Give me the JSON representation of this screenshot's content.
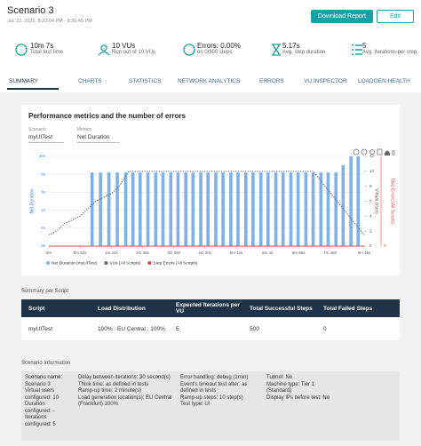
{
  "header": {
    "title": "Scenario 3",
    "subtitle": "Jul. 22, 2021, 8:22:04 PM - 8:30:45 PM",
    "buttons": [
      "Download Report",
      "Edit"
    ]
  },
  "stats": [
    {
      "value": "10m 7s",
      "label": "Total test time"
    },
    {
      "value": "10 VUs",
      "label": "Run out of 10 VUs"
    },
    {
      "value": "Errors: 0.00%",
      "label": "on 0/500 steps"
    },
    {
      "value": "5.17s",
      "label": "Avg. step duration"
    },
    {
      "value": "5",
      "label": "Avg. iterations per step"
    }
  ],
  "tabs": [
    "SUMMARY",
    "CHARTS",
    "STATISTICS",
    "NETWORK ANALYTICS",
    "ERRORS",
    "VU INSPECTOR",
    "LOADGEN HEALTH"
  ],
  "chart": {
    "type": "combo",
    "title": "Performance metrics and the number of errors",
    "selectors": [
      {
        "label": "Scenario",
        "value": "myUITest"
      },
      {
        "label": "Metrics",
        "value": "Net Duration"
      }
    ],
    "ylabel": "Net Duration",
    "y2label": "Virtual Users",
    "y3label": "Step Errors (All Scripts)",
    "xlim": [
      0,
      525
    ],
    "xticks": [
      {
        "value": 0,
        "label": "0m"
      },
      {
        "value": 52,
        "label": "0m 52s"
      },
      {
        "value": 104,
        "label": "1m 44s"
      },
      {
        "value": 156,
        "label": "2m 36s"
      },
      {
        "value": 208,
        "label": "3m 28s"
      },
      {
        "value": 260,
        "label": "4m 20s"
      },
      {
        "value": 312,
        "label": "5m 12s"
      },
      {
        "value": 364,
        "label": "6m 4s"
      },
      {
        "value": 416,
        "label": "6m 56s"
      },
      {
        "value": 468,
        "label": "7m 48s"
      },
      {
        "value": 525,
        "label": "8m 45s"
      }
    ],
    "ylim": [
      0,
      10
    ],
    "yticks": [
      {
        "value": 0,
        "label": "0s"
      },
      {
        "value": 2,
        "label": "2s"
      },
      {
        "value": 4,
        "label": "4s"
      },
      {
        "value": 6,
        "label": "6s"
      },
      {
        "value": 8,
        "label": "8s"
      },
      {
        "value": 10,
        "label": "10s"
      }
    ],
    "y2lim": [
      0,
      12
    ],
    "y2ticks": [
      0,
      2,
      4,
      6,
      8,
      10,
      12
    ],
    "y3lim": [
      0,
      1
    ],
    "y3ticks": [
      0
    ],
    "grid": true,
    "series": [
      {
        "name": "Net Duration (myUITest)",
        "type": "bar",
        "color": "#7eb0ea",
        "x": [
          72,
          86,
          100,
          114,
          128,
          140,
          152,
          165,
          178,
          190,
          203,
          215,
          228,
          240,
          253,
          265,
          278,
          290,
          303,
          315,
          328,
          340,
          353,
          365,
          378,
          390,
          403,
          415,
          428,
          440,
          453,
          465,
          478,
          490,
          503,
          515
        ],
        "values": [
          8.2,
          8.2,
          8.2,
          8.2,
          8.2,
          8.2,
          8.2,
          8.2,
          8.2,
          8.2,
          8.2,
          8.2,
          8.2,
          8.2,
          8.2,
          8.2,
          8.2,
          8.2,
          8.2,
          8.2,
          8.2,
          8.2,
          8.2,
          8.2,
          8.2,
          8.2,
          8.2,
          8.2,
          8.2,
          8.2,
          8.2,
          8.2,
          8.2,
          9,
          10,
          10
        ]
      },
      {
        "name": "VUs (All Scripts)",
        "type": "line",
        "axis": "y2",
        "color": "#666666",
        "x": [
          0,
          13,
          26,
          39,
          52,
          65,
          78,
          91,
          104,
          117,
          133,
          440,
          470,
          500,
          525
        ],
        "values": [
          1.5,
          2,
          3,
          3.5,
          4,
          5,
          6,
          6.5,
          7,
          8,
          10,
          10,
          7,
          4,
          1.5
        ]
      },
      {
        "name": "Step Errors (All Scripts)",
        "type": "line",
        "axis": "y3",
        "color": "#e04848",
        "x": [
          0,
          525
        ],
        "values": [
          0,
          0
        ]
      }
    ]
  },
  "summary": {
    "title": "Summary per Script",
    "columns": [
      "Script",
      "Load Distribution",
      "Expected Iterations per VU",
      "Total Successful Steps",
      "Total Failed Steps"
    ],
    "rows": [
      [
        "myUITest",
        "100% : EU Central : 100%",
        5,
        500,
        0
      ]
    ]
  },
  "info": {
    "title": "Scenario Information",
    "columns": [
      [
        "Scenario name: Scenario 3",
        "Virtual users configured: 10",
        "Duration configured: -",
        "Iterations configured: 5"
      ],
      [
        "Delay between iterations: 30 second(s)",
        "Think time: as defined in tests",
        "Ramp-up time: 2 minute(s)",
        "Load generation location(s): EU Central (Frankfurt) 100%"
      ],
      [
        "Error handling: debug (1min)",
        "Event's timeout test after: as defined in tests",
        "Ramp-up steps: 10 step(s)",
        "Test type: UI"
      ],
      [
        "Tunnel: No",
        "Machine type: Tier 1 (Standard)",
        "Display IPs before test: No"
      ]
    ]
  }
}
